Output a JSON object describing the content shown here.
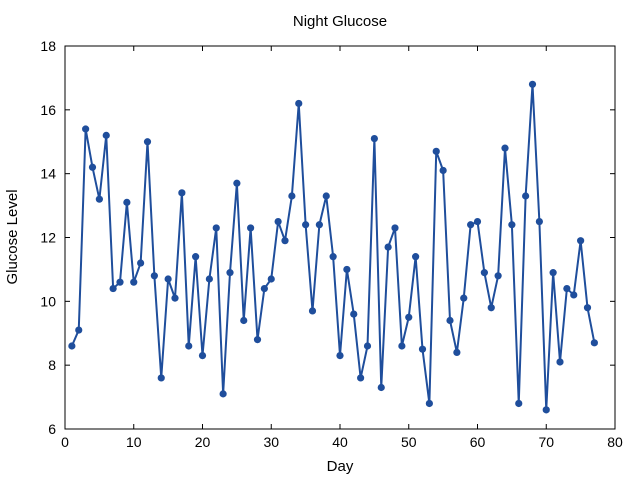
{
  "chart_data": {
    "type": "line",
    "title": "Night Glucose",
    "xlabel": "Day",
    "ylabel": "Glucose Level",
    "xlim": [
      0,
      80
    ],
    "ylim": [
      6,
      18
    ],
    "xticks": [
      "0",
      "10",
      "20",
      "30",
      "40",
      "50",
      "60",
      "70",
      "80"
    ],
    "yticks": [
      "6",
      "8",
      "10",
      "12",
      "14",
      "16",
      "18"
    ],
    "grid": false,
    "legend": "none",
    "series": [
      {
        "color": "#1f4e9c",
        "marker": "circle",
        "x": [
          1,
          2,
          3,
          4,
          5,
          6,
          7,
          8,
          9,
          10,
          11,
          12,
          13,
          14,
          15,
          16,
          17,
          18,
          19,
          20,
          21,
          22,
          23,
          24,
          25,
          26,
          27,
          28,
          29,
          30,
          31,
          32,
          33,
          34,
          35,
          36,
          37,
          38,
          39,
          40,
          41,
          42,
          43,
          44,
          45,
          46,
          47,
          48,
          49,
          50,
          51,
          52,
          53,
          54,
          55,
          56,
          57,
          58,
          59,
          60,
          61,
          62,
          63,
          64,
          65,
          66,
          67,
          68,
          69,
          70,
          71,
          72,
          73,
          74,
          75,
          76,
          77
        ],
        "y": [
          8.6,
          9.1,
          15.4,
          14.2,
          13.2,
          15.2,
          10.4,
          10.6,
          13.1,
          10.6,
          11.2,
          15.0,
          10.8,
          7.6,
          10.7,
          10.1,
          13.4,
          8.6,
          11.4,
          8.3,
          10.7,
          12.3,
          7.1,
          10.9,
          13.7,
          9.4,
          12.3,
          8.8,
          10.4,
          10.7,
          12.5,
          11.9,
          13.3,
          16.2,
          12.4,
          9.7,
          12.4,
          13.3,
          11.4,
          8.3,
          11.0,
          9.6,
          7.6,
          8.6,
          15.1,
          7.3,
          11.7,
          12.3,
          8.6,
          9.5,
          11.4,
          8.5,
          6.8,
          14.7,
          14.1,
          9.4,
          8.4,
          10.1,
          12.4,
          12.5,
          10.9,
          9.8,
          10.8,
          14.8,
          12.4,
          6.8,
          13.3,
          16.8,
          12.5,
          6.6,
          10.9,
          8.1,
          10.4,
          10.2,
          11.9,
          9.8,
          8.7
        ]
      }
    ]
  }
}
